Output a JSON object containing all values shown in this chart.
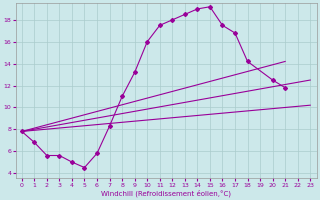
{
  "xlabel": "Windchill (Refroidissement éolien,°C)",
  "bg_color": "#cce8ea",
  "grid_color": "#aacccc",
  "line_color": "#990099",
  "xlim": [
    -0.5,
    23.5
  ],
  "ylim": [
    3.5,
    19.5
  ],
  "xticks": [
    0,
    1,
    2,
    3,
    4,
    5,
    6,
    7,
    8,
    9,
    10,
    11,
    12,
    13,
    14,
    15,
    16,
    17,
    18,
    19,
    20,
    21,
    22,
    23
  ],
  "yticks": [
    4,
    6,
    8,
    10,
    12,
    14,
    16,
    18
  ],
  "main_x": [
    0,
    1,
    2,
    3,
    4,
    5,
    6,
    7,
    8,
    9,
    10,
    11,
    12,
    13,
    14,
    15,
    16,
    17,
    18,
    20,
    21
  ],
  "main_y": [
    7.8,
    6.8,
    5.6,
    5.6,
    5.0,
    4.5,
    5.8,
    8.3,
    11.0,
    13.2,
    16.0,
    17.5,
    18.0,
    18.5,
    19.0,
    19.2,
    17.5,
    16.8,
    14.2,
    12.5,
    11.8
  ],
  "line1_x": [
    0,
    23
  ],
  "line1_y": [
    7.8,
    10.2
  ],
  "line2_x": [
    0,
    23
  ],
  "line2_y": [
    7.8,
    12.5
  ],
  "line3_x": [
    0,
    21
  ],
  "line3_y": [
    7.8,
    14.2
  ]
}
